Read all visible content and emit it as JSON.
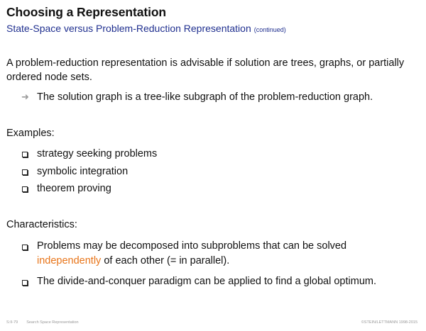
{
  "header": {
    "title": "Choosing a Representation",
    "subtitle": "State-Space versus Problem-Reduction Representation",
    "subtitle_note": "(continued)"
  },
  "intro": {
    "text": "A problem-reduction representation is advisable if solution are trees, graphs, or partially ordered node sets.",
    "arrow_item": "The solution graph is a tree-like subgraph of the problem-reduction graph."
  },
  "examples": {
    "heading": "Examples:",
    "items": [
      "strategy seeking problems",
      "symbolic integration",
      "theorem proving"
    ]
  },
  "characteristics": {
    "heading": "Characteristics:",
    "item1_before": "Problems may be decomposed into subproblems that can be solved",
    "item1_highlight": "independently",
    "item1_after": " of each other (= in parallel).",
    "item2": "The divide-and-conquer paradigm can be applied to find a global optimum."
  },
  "footer": {
    "slide_ref": "S:II-79",
    "section": "Search Space Representation",
    "copyright": "©STEIN/LETTMANN 1998-2015"
  },
  "colors": {
    "subtitle": "#1f2f8f",
    "highlight": "#e8751a",
    "arrow": "#9a9a9a"
  }
}
